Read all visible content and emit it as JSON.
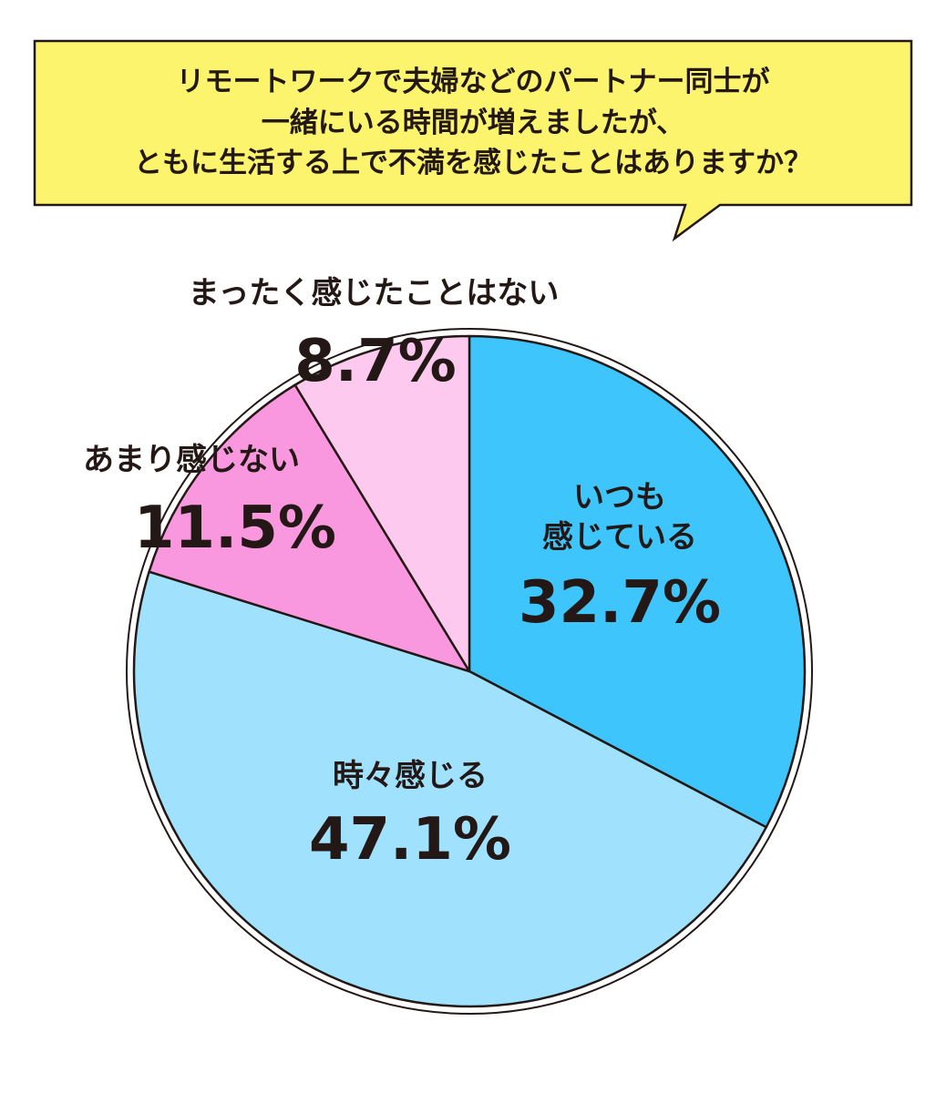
{
  "chart_data": {
    "type": "pie",
    "title": "リモートワークで夫婦などのパートナー同士が\n一緒にいる時間が増えましたが、\nともに生活する上で不満を感じたことはありますか？",
    "categories": [
      "いつも\n感じている",
      "時々感じる",
      "あまり感じない",
      "まったく感じたことはない"
    ],
    "values": [
      32.7,
      47.1,
      11.5,
      8.7
    ],
    "value_labels": [
      "32.7%",
      "47.1%",
      "11.5%",
      "8.7%"
    ],
    "colors": [
      "#3ec5fb",
      "#a0e2fd",
      "#fa98df",
      "#fdc9ef"
    ]
  }
}
